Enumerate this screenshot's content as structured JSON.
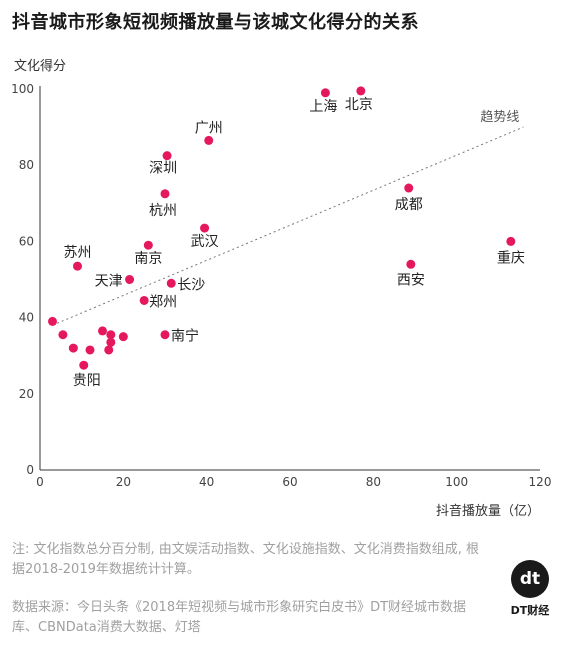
{
  "title": "抖音城市形象短视频播放量与该城文化得分的关系",
  "note": "注: 文化指数总分百分制, 由文娱活动指数、文化设施指数、文化消费指数组成, 根据2018-2019年数据统计计算。",
  "source": "数据来源：今日头条《2018年短视频与城市形象研究白皮书》DT财经城市数据库、CBNData消费大数据、灯塔",
  "logo": {
    "mark": "dt",
    "text": "DT财经"
  },
  "colors": {
    "point": "#e5185d",
    "trend": "#777777",
    "axis": "#333333"
  },
  "chart_data": {
    "type": "scatter",
    "ylabel": "文化得分",
    "xlabel": "抖音播放量（亿）",
    "xlim": [
      0,
      120
    ],
    "ylim": [
      0,
      100
    ],
    "xticks": [
      0,
      20,
      40,
      60,
      80,
      100,
      120
    ],
    "yticks": [
      0,
      20,
      40,
      60,
      80,
      100
    ],
    "grid": false,
    "trendline": {
      "label": "趋势线",
      "from": [
        3,
        38
      ],
      "to": [
        116,
        90
      ]
    },
    "points": [
      {
        "x": 68.5,
        "y": 99.0,
        "label": "上海"
      },
      {
        "x": 77.0,
        "y": 99.5,
        "label": "北京"
      },
      {
        "x": 40.5,
        "y": 86.5,
        "label": "广州"
      },
      {
        "x": 30.5,
        "y": 82.5,
        "label": "深圳"
      },
      {
        "x": 30.0,
        "y": 72.5,
        "label": "杭州"
      },
      {
        "x": 88.5,
        "y": 74.0,
        "label": "成都"
      },
      {
        "x": 39.5,
        "y": 63.5,
        "label": "武汉"
      },
      {
        "x": 26.0,
        "y": 59.0,
        "label": "南京"
      },
      {
        "x": 113.0,
        "y": 60.0,
        "label": "重庆"
      },
      {
        "x": 9.0,
        "y": 53.5,
        "label": "苏州"
      },
      {
        "x": 89.0,
        "y": 54.0,
        "label": "西安"
      },
      {
        "x": 21.5,
        "y": 50.0,
        "label": "天津"
      },
      {
        "x": 31.5,
        "y": 49.0,
        "label": "长沙"
      },
      {
        "x": 25.0,
        "y": 44.5,
        "label": "郑州"
      },
      {
        "x": 30.0,
        "y": 35.5,
        "label": "南宁"
      },
      {
        "x": 10.5,
        "y": 27.5,
        "label": "贵阳"
      },
      {
        "x": 3.0,
        "y": 39.0,
        "label": ""
      },
      {
        "x": 5.5,
        "y": 35.5,
        "label": ""
      },
      {
        "x": 8.0,
        "y": 32.0,
        "label": ""
      },
      {
        "x": 12.0,
        "y": 31.5,
        "label": ""
      },
      {
        "x": 15.0,
        "y": 36.5,
        "label": ""
      },
      {
        "x": 17.0,
        "y": 35.5,
        "label": ""
      },
      {
        "x": 17.0,
        "y": 33.5,
        "label": ""
      },
      {
        "x": 16.5,
        "y": 31.5,
        "label": ""
      },
      {
        "x": 20.0,
        "y": 35.0,
        "label": ""
      }
    ]
  }
}
